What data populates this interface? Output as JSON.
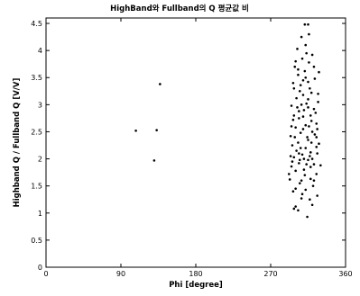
{
  "chart_data": {
    "type": "scatter",
    "title": "HighBand와 Fullband의 Q 평균값 비",
    "xlabel": "Phi [degree]",
    "ylabel": "Highband Q / Fullband Q [V/V]",
    "xlim": [
      0,
      360
    ],
    "ylim": [
      0,
      4.6
    ],
    "xticks": [
      0,
      90,
      180,
      270,
      360
    ],
    "xtick_labels": [
      "0",
      "90",
      "180",
      "270",
      "360"
    ],
    "yticks": [
      0,
      0.5,
      1,
      1.5,
      2,
      2.5,
      3,
      3.5,
      4,
      4.5
    ],
    "ytick_labels": [
      "0",
      "0.5",
      "1",
      "1.5",
      "2",
      "2.5",
      "3",
      "3.5",
      "4",
      "4.5"
    ],
    "grid": false,
    "marker_color": "#000000",
    "series": [
      {
        "points": [
          [
            108,
            2.52
          ],
          [
            130,
            1.97
          ],
          [
            133,
            2.53
          ],
          [
            137,
            3.38
          ],
          [
            298,
            1.08
          ],
          [
            303,
            1.05
          ],
          [
            300,
            1.12
          ],
          [
            314,
            0.93
          ],
          [
            307,
            1.27
          ],
          [
            320,
            1.15
          ],
          [
            297,
            1.4
          ],
          [
            312,
            1.43
          ],
          [
            326,
            1.32
          ],
          [
            305,
            1.55
          ],
          [
            318,
            1.63
          ],
          [
            292,
            1.72
          ],
          [
            300,
            1.78
          ],
          [
            325,
            1.72
          ],
          [
            310,
            1.8
          ],
          [
            295,
            1.86
          ],
          [
            304,
            1.92
          ],
          [
            315,
            1.98
          ],
          [
            322,
            1.9
          ],
          [
            330,
            1.88
          ],
          [
            298,
            2.03
          ],
          [
            308,
            2.08
          ],
          [
            318,
            2.12
          ],
          [
            312,
            2.2
          ],
          [
            296,
            2.25
          ],
          [
            325,
            2.22
          ],
          [
            303,
            2.3
          ],
          [
            315,
            2.35
          ],
          [
            328,
            2.28
          ],
          [
            294,
            2.42
          ],
          [
            306,
            2.48
          ],
          [
            320,
            2.5
          ],
          [
            300,
            2.58
          ],
          [
            312,
            2.62
          ],
          [
            325,
            2.65
          ],
          [
            297,
            2.72
          ],
          [
            309,
            2.78
          ],
          [
            318,
            2.8
          ],
          [
            304,
            2.88
          ],
          [
            322,
            2.92
          ],
          [
            295,
            2.98
          ],
          [
            313,
            3.02
          ],
          [
            327,
            3.05
          ],
          [
            301,
            3.12
          ],
          [
            309,
            3.18
          ],
          [
            319,
            3.22
          ],
          [
            298,
            3.3
          ],
          [
            306,
            3.36
          ],
          [
            315,
            3.42
          ],
          [
            323,
            3.48
          ],
          [
            303,
            3.55
          ],
          [
            311,
            3.62
          ],
          [
            299,
            3.7
          ],
          [
            316,
            3.78
          ],
          [
            308,
            3.85
          ],
          [
            320,
            3.92
          ],
          [
            302,
            4.03
          ],
          [
            312,
            4.1
          ],
          [
            307,
            4.25
          ],
          [
            316,
            4.3
          ],
          [
            311,
            4.48
          ],
          [
            315,
            4.48
          ],
          [
            293,
            1.62
          ],
          [
            310,
            2.0
          ],
          [
            326,
            2.55
          ],
          [
            301,
            2.15
          ],
          [
            317,
            1.25
          ],
          [
            305,
            3.25
          ],
          [
            328,
            3.6
          ],
          [
            294,
            2.05
          ],
          [
            319,
            2.7
          ],
          [
            307,
            1.6
          ],
          [
            323,
            2.45
          ],
          [
            300,
            3.8
          ],
          [
            313,
            3.95
          ],
          [
            296,
            1.95
          ],
          [
            321,
            1.5
          ],
          [
            309,
            2.55
          ],
          [
            317,
            3.3
          ],
          [
            304,
            2.75
          ],
          [
            326,
            2.1
          ],
          [
            311,
            1.7
          ],
          [
            299,
            2.4
          ],
          [
            315,
            3.1
          ],
          [
            322,
            3.7
          ],
          [
            306,
            2.2
          ],
          [
            318,
            1.85
          ],
          [
            302,
            2.95
          ],
          [
            314,
            2.4
          ],
          [
            308,
            1.35
          ],
          [
            324,
            2.85
          ],
          [
            297,
            3.4
          ],
          [
            312,
            3.5
          ],
          [
            320,
            2.0
          ],
          [
            305,
            1.98
          ],
          [
            316,
            2.6
          ],
          [
            300,
            1.45
          ],
          [
            327,
            3.2
          ],
          [
            310,
            2.9
          ],
          [
            303,
            3.65
          ],
          [
            319,
            2.3
          ],
          [
            295,
            2.6
          ],
          [
            313,
            1.9
          ],
          [
            307,
            3.0
          ],
          [
            322,
            1.6
          ],
          [
            298,
            2.8
          ],
          [
            317,
            2.05
          ],
          [
            309,
            3.45
          ],
          [
            325,
            2.4
          ],
          [
            304,
            2.1
          ],
          [
            315,
            2.95
          ]
        ]
      }
    ]
  }
}
